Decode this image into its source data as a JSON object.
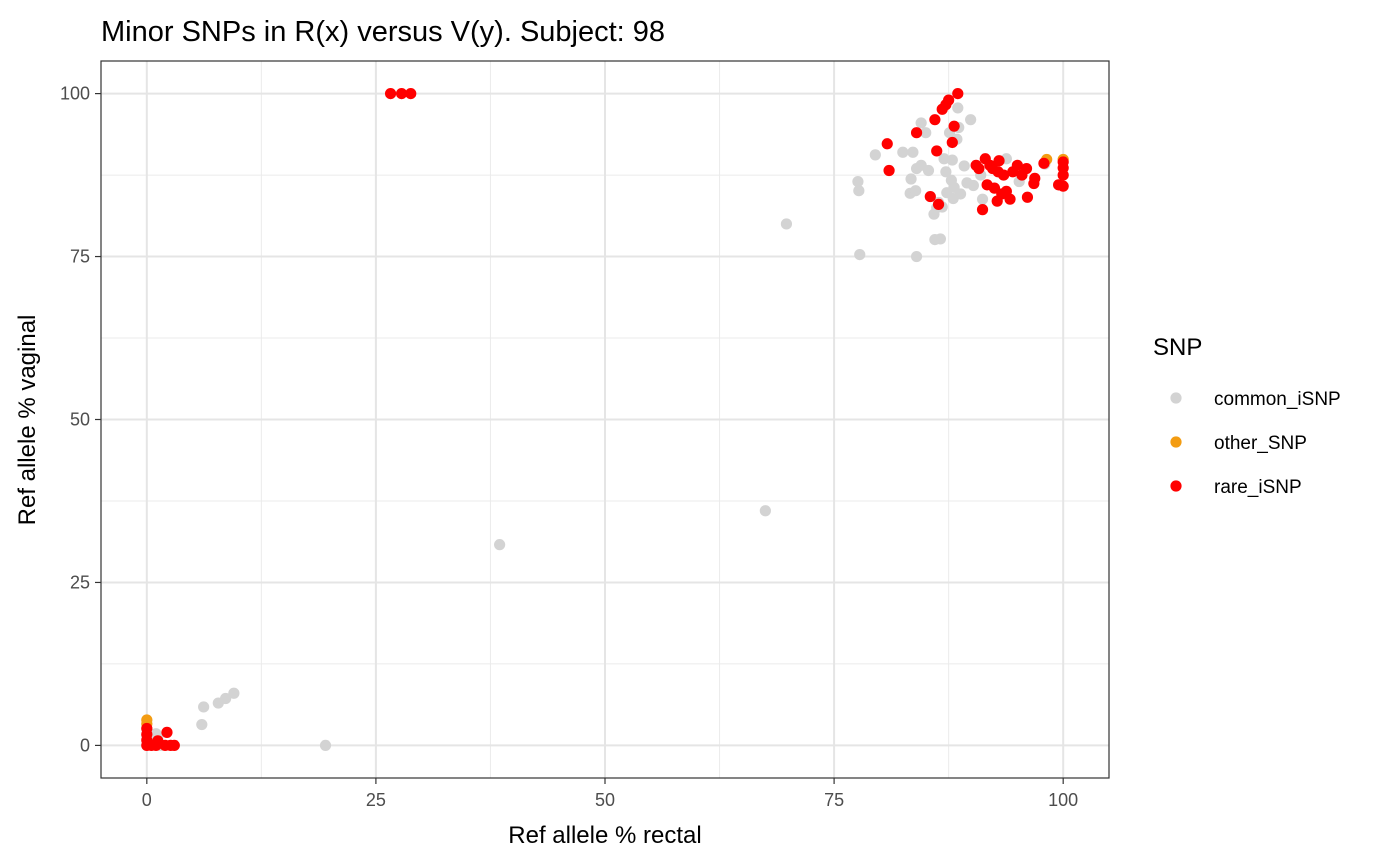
{
  "chart_data": {
    "type": "scatter",
    "title": "Minor SNPs in R(x) versus V(y). Subject: 98",
    "xlabel": "Ref allele % rectal",
    "ylabel": "Ref allele % vaginal",
    "xlim": [
      -5,
      105
    ],
    "ylim": [
      -5,
      105
    ],
    "x_ticks": [
      0,
      25,
      50,
      75,
      100
    ],
    "y_ticks": [
      0,
      25,
      50,
      75,
      100
    ],
    "grid": true,
    "legend": {
      "title": "SNP",
      "placement": "right"
    },
    "series": [
      {
        "name": "common_iSNP",
        "color": "#d3d3d3",
        "points": [
          [
            0,
            0
          ],
          [
            0,
            1
          ],
          [
            0,
            1.5
          ],
          [
            0,
            2.5
          ],
          [
            0.3,
            0.5
          ],
          [
            0.5,
            1.2
          ],
          [
            1,
            1.8
          ],
          [
            1.2,
            1.2
          ],
          [
            1.5,
            0
          ],
          [
            6,
            3.2
          ],
          [
            6.2,
            5.9
          ],
          [
            7.8,
            6.5
          ],
          [
            8.6,
            7.2
          ],
          [
            9.5,
            8
          ],
          [
            19.5,
            0
          ],
          [
            38.5,
            30.8
          ],
          [
            67.5,
            36
          ],
          [
            69.8,
            80
          ],
          [
            77.6,
            86.5
          ],
          [
            77.7,
            85.1
          ],
          [
            77.8,
            75.3
          ],
          [
            79.5,
            90.6
          ],
          [
            82.5,
            91
          ],
          [
            83.3,
            84.7
          ],
          [
            83.4,
            86.9
          ],
          [
            83.6,
            91
          ],
          [
            83.9,
            85.1
          ],
          [
            84,
            75
          ],
          [
            84,
            88.5
          ],
          [
            84.5,
            89
          ],
          [
            84.5,
            95.5
          ],
          [
            85,
            94
          ],
          [
            85.3,
            88.2
          ],
          [
            85.9,
            81.5
          ],
          [
            86,
            77.6
          ],
          [
            86.2,
            82.5
          ],
          [
            86.4,
            83.3
          ],
          [
            86.6,
            77.7
          ],
          [
            86.8,
            82.6
          ],
          [
            87,
            90
          ],
          [
            87.2,
            88
          ],
          [
            87.3,
            84.8
          ],
          [
            87.6,
            94
          ],
          [
            87.8,
            86.7
          ],
          [
            87.9,
            89.8
          ],
          [
            88,
            83.9
          ],
          [
            88.1,
            85.6
          ],
          [
            88.4,
            93
          ],
          [
            88.5,
            97.8
          ],
          [
            88.6,
            94.8
          ],
          [
            88.8,
            84.6
          ],
          [
            89.2,
            88.9
          ],
          [
            89.5,
            86.3
          ],
          [
            89.9,
            96
          ],
          [
            90.2,
            85.9
          ],
          [
            91,
            87.5
          ],
          [
            91.2,
            83.8
          ],
          [
            93.8,
            90
          ],
          [
            95.2,
            86.5
          ],
          [
            98,
            89.2
          ]
        ]
      },
      {
        "name": "other_SNP",
        "color": "#f39c12",
        "points": [
          [
            0,
            3.9
          ],
          [
            0,
            3.3
          ],
          [
            98.2,
            89.9
          ],
          [
            100,
            89.9
          ]
        ]
      },
      {
        "name": "rare_iSNP",
        "color": "#ff0000",
        "points": [
          [
            0,
            0
          ],
          [
            0,
            0.8
          ],
          [
            0,
            1.7
          ],
          [
            0,
            2.6
          ],
          [
            0.5,
            0
          ],
          [
            1,
            0
          ],
          [
            1.2,
            0.7
          ],
          [
            2,
            0
          ],
          [
            2.2,
            2
          ],
          [
            2.6,
            0
          ],
          [
            3,
            0
          ],
          [
            26.6,
            100
          ],
          [
            27.8,
            100
          ],
          [
            28.8,
            100
          ],
          [
            80.8,
            92.3
          ],
          [
            81,
            88.2
          ],
          [
            84,
            94
          ],
          [
            85.5,
            84.2
          ],
          [
            86,
            96
          ],
          [
            86.2,
            91.2
          ],
          [
            86.4,
            83
          ],
          [
            86.8,
            97.6
          ],
          [
            87.2,
            98.3
          ],
          [
            87.5,
            99
          ],
          [
            87.9,
            92.5
          ],
          [
            88.1,
            95
          ],
          [
            88.5,
            100
          ],
          [
            90.5,
            89
          ],
          [
            90.8,
            88.5
          ],
          [
            91.2,
            82.2
          ],
          [
            91.5,
            90
          ],
          [
            91.7,
            86
          ],
          [
            92,
            89
          ],
          [
            92.3,
            88.5
          ],
          [
            92.5,
            85.5
          ],
          [
            92.8,
            83.5
          ],
          [
            92.9,
            88
          ],
          [
            93,
            89.7
          ],
          [
            93.3,
            84.6
          ],
          [
            93.5,
            87.5
          ],
          [
            93.8,
            85
          ],
          [
            94.2,
            83.8
          ],
          [
            94.5,
            88
          ],
          [
            95,
            89
          ],
          [
            95.5,
            87.5
          ],
          [
            96,
            88.5
          ],
          [
            96.1,
            84.1
          ],
          [
            96.8,
            86.2
          ],
          [
            96.9,
            87
          ],
          [
            97.9,
            89.3
          ],
          [
            99.5,
            86
          ],
          [
            100,
            85.8
          ],
          [
            100,
            87.5
          ],
          [
            100,
            88.6
          ],
          [
            100,
            89.5
          ]
        ]
      }
    ]
  }
}
